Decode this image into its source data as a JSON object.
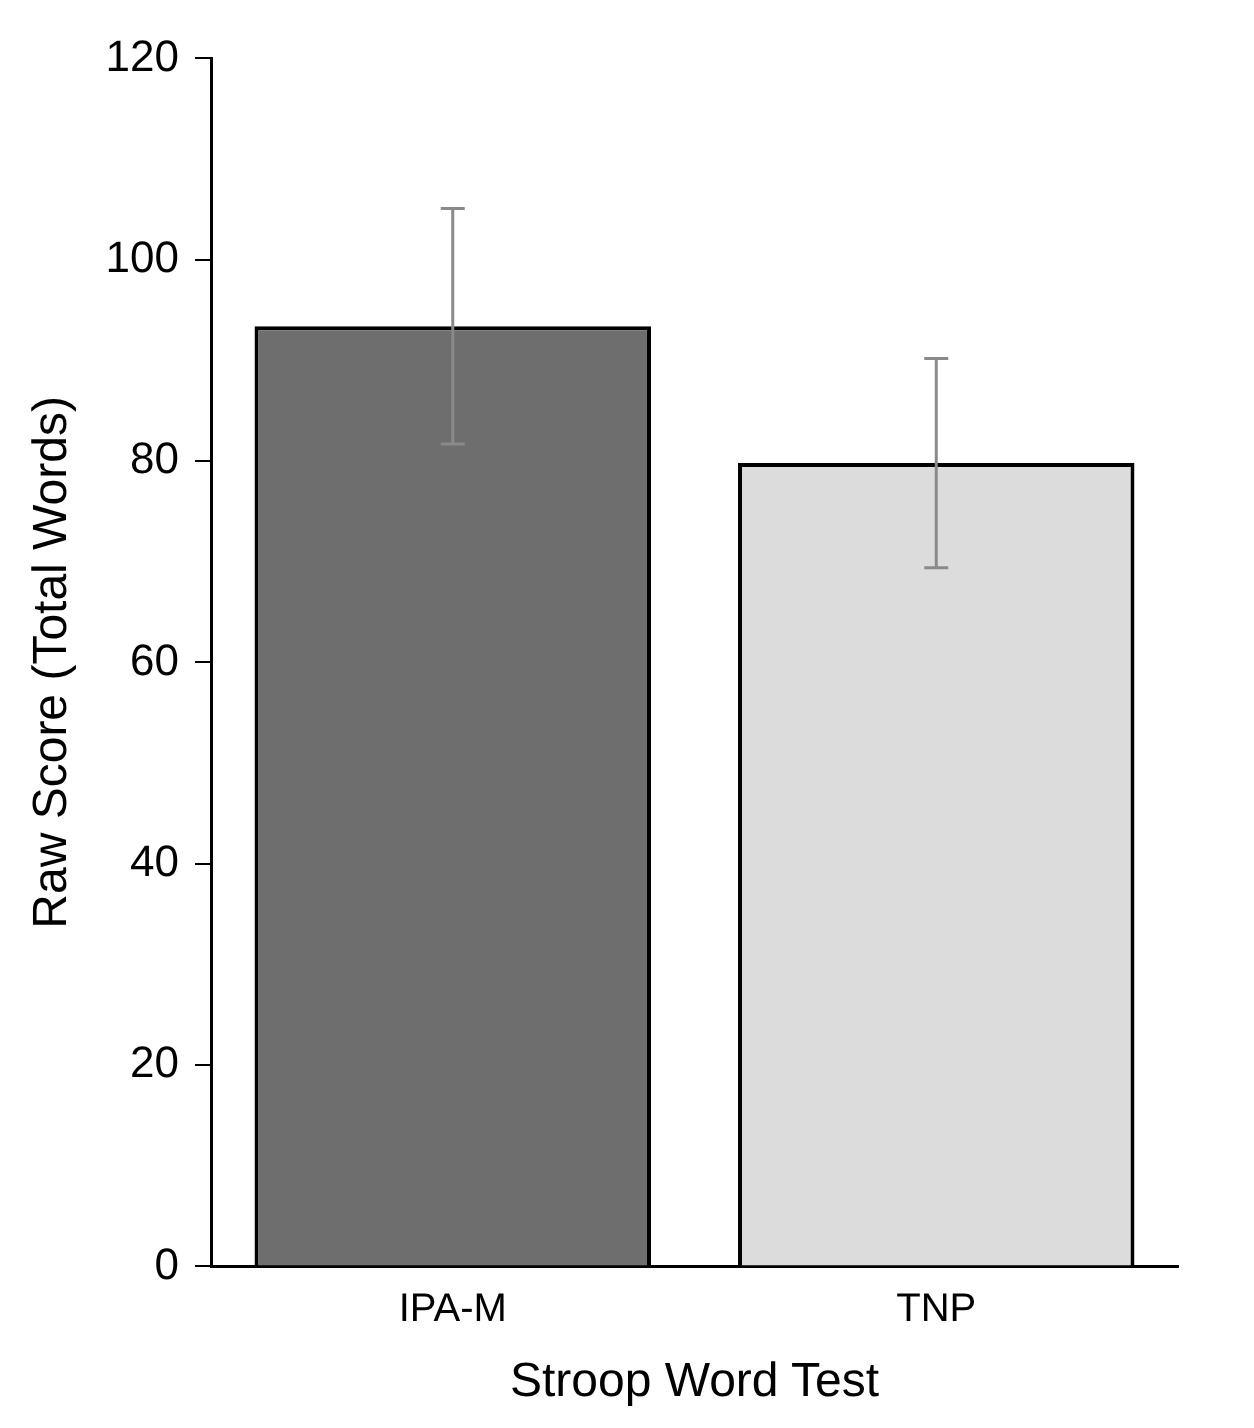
{
  "chart_data": {
    "type": "bar",
    "xlabel": "Stroop Word Test",
    "ylabel": "Raw Score (Total Words)",
    "categories": [
      "IPA-M",
      "TNP"
    ],
    "values": [
      93.4,
      79.8
    ],
    "errors": [
      11.7,
      10.4
    ],
    "colors": [
      "#6e6e6e",
      "#dcdcdc"
    ],
    "ylim": [
      0,
      120
    ],
    "yticks": [
      0,
      20,
      40,
      60,
      80,
      100,
      120
    ],
    "grid": false,
    "legend": false
  }
}
